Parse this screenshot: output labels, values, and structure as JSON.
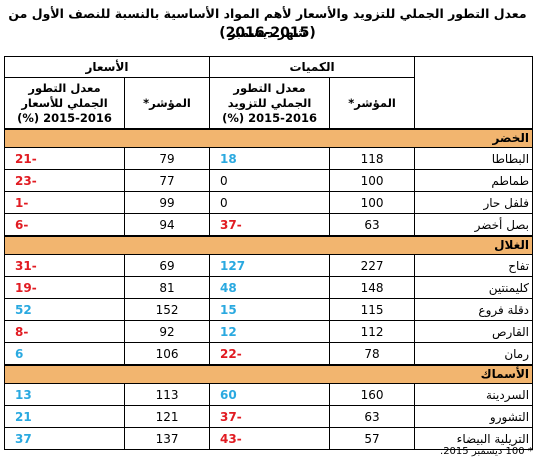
{
  "title_line1": "معدل التطور الجملي للتزويد والأسعار لأهم المواد الأساسية بالنسبة للنصف الأول من شهر ديسمبر",
  "title_line2": "(2016-2015)",
  "groups": {
    "quantities": "الكميات",
    "prices": "الأسعار"
  },
  "columns": {
    "q_index": "المؤشر*",
    "q_rate": "معدل التطور الجملي للتزويد 2016-2015 (%)",
    "p_index": "المؤشر*",
    "p_rate": "معدل التطور الجملي للأسعار 2016-2015 (%)"
  },
  "sections": [
    {
      "name": "الخضر",
      "rows": [
        {
          "product": "البطاطا",
          "q_index": "118",
          "q_rate": "18",
          "p_index": "79",
          "p_rate": "-21"
        },
        {
          "product": "طماطم",
          "q_index": "100",
          "q_rate": "0",
          "p_index": "77",
          "p_rate": "-23"
        },
        {
          "product": "فلفل حار",
          "q_index": "100",
          "q_rate": "0",
          "p_index": "99",
          "p_rate": "-1"
        },
        {
          "product": "بصل أخضر",
          "q_index": "63",
          "q_rate": "-37",
          "p_index": "94",
          "p_rate": "-6"
        }
      ]
    },
    {
      "name": "الغلال",
      "rows": [
        {
          "product": "تفاح",
          "q_index": "227",
          "q_rate": "127",
          "p_index": "69",
          "p_rate": "-31"
        },
        {
          "product": "كليمنتين",
          "q_index": "148",
          "q_rate": "48",
          "p_index": "81",
          "p_rate": "-19"
        },
        {
          "product": "دقلة فروع",
          "q_index": "115",
          "q_rate": "15",
          "p_index": "152",
          "p_rate": "52"
        },
        {
          "product": "القارص",
          "q_index": "112",
          "q_rate": "12",
          "p_index": "92",
          "p_rate": "-8"
        },
        {
          "product": "رمان",
          "q_index": "78",
          "q_rate": "-22",
          "p_index": "106",
          "p_rate": "6"
        }
      ]
    },
    {
      "name": "الأسماك",
      "rows": [
        {
          "product": "السردينة",
          "q_index": "160",
          "q_rate": "60",
          "p_index": "113",
          "p_rate": "13"
        },
        {
          "product": "التشورو",
          "q_index": "63",
          "q_rate": "-37",
          "p_index": "121",
          "p_rate": "21"
        },
        {
          "product": "التريلية البيضاء",
          "q_index": "57",
          "q_rate": "-43",
          "p_index": "137",
          "p_rate": "37"
        }
      ]
    }
  ],
  "footnote": "* 100 ديسمبر 2015.",
  "colors": {
    "section_bg": "#f2b56f",
    "positive": "#2aa9e0",
    "negative": "#e11b22"
  }
}
